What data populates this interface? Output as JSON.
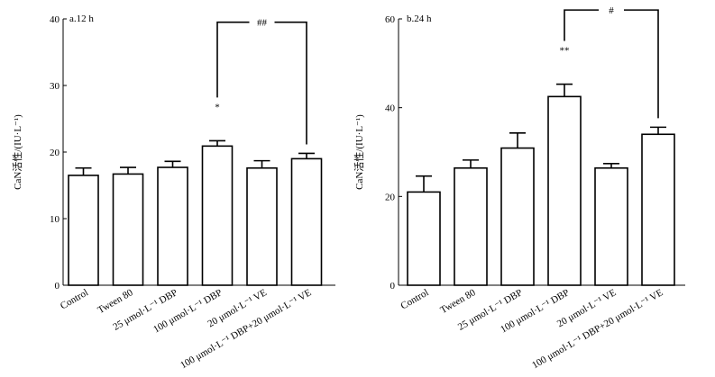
{
  "chart_data": [
    {
      "type": "bar",
      "title": "a.12 h",
      "ylabel": "CaN活性/(IU·L⁻¹)",
      "xlabel": "",
      "ylim": [
        0,
        40
      ],
      "yticks": [
        0,
        10,
        20,
        30,
        40
      ],
      "categories": [
        "Control",
        "Tween 80",
        "25 μmol·L⁻¹ DBP",
        "100 μmol·L⁻¹ DBP",
        "20 μmol·L⁻¹ VE",
        "100 μmol·L⁻¹ DBP+20 μmol·L⁻¹ VE"
      ],
      "values": [
        16.5,
        16.7,
        17.7,
        20.9,
        17.6,
        19.0
      ],
      "errors": [
        1.1,
        1.0,
        0.9,
        0.8,
        1.1,
        0.8
      ],
      "significance": [
        {
          "category_index": 3,
          "label": "*"
        }
      ],
      "comparisons": [
        {
          "from": 3,
          "to": 5,
          "label": "##",
          "y": 39.5
        }
      ]
    },
    {
      "type": "bar",
      "title": "b.24 h",
      "ylabel": "CaN活性/(IU·L⁻¹)",
      "xlabel": "",
      "ylim": [
        0,
        60
      ],
      "yticks": [
        0,
        20,
        40,
        60
      ],
      "categories": [
        "Control",
        "Tween 80",
        "25 μmol·L⁻¹ DBP",
        "100 μmol·L⁻¹ DBP",
        "20 μmol·L⁻¹ VE",
        "100 μmol·L⁻¹ DBP+20 μmol·L⁻¹ VE"
      ],
      "values": [
        21.0,
        26.4,
        30.9,
        42.5,
        26.4,
        34.0
      ],
      "errors": [
        3.6,
        1.8,
        3.4,
        2.8,
        1.0,
        1.6
      ],
      "significance": [
        {
          "category_index": 3,
          "label": "**"
        }
      ],
      "comparisons": [
        {
          "from": 3,
          "to": 5,
          "label": "#",
          "y": 62.0
        }
      ]
    }
  ]
}
